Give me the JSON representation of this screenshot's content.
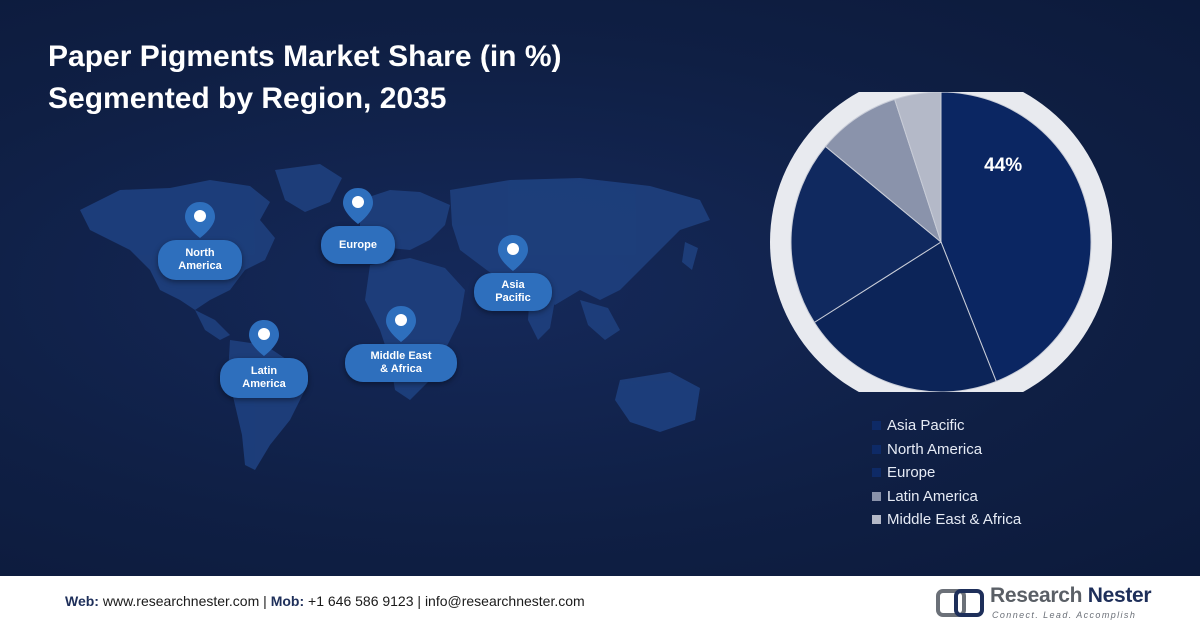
{
  "title": {
    "line1": "Paper Pigments Market Share (in %)",
    "line2": "Segmented by Region, 2035"
  },
  "map_regions": [
    {
      "label": "North\nAmerica"
    },
    {
      "label": "Europe"
    },
    {
      "label": "Asia\nPacific"
    },
    {
      "label": "Latin\nAmerica"
    },
    {
      "label": "Middle East\n& Africa"
    }
  ],
  "chart_data": {
    "type": "pie",
    "title": "Paper Pigments Market Share (in %) Segmented by Region, 2035",
    "categories": [
      "Asia Pacific",
      "North America",
      "Europe",
      "Latin America",
      "Middle East & Africa"
    ],
    "values": [
      44,
      22,
      20,
      9,
      5
    ],
    "data_labels": [
      "44%",
      "",
      "",
      "",
      ""
    ],
    "colors": [
      "#0b2662",
      "#0c2458",
      "#10295f",
      "#8a93ab",
      "#b4b9c8"
    ],
    "legend_position": "bottom-right"
  },
  "footer": {
    "web_label": "Web:",
    "web_value": "www.researchnester.com",
    "mob_label": "Mob:",
    "mob_value": "+1 646 586 9123",
    "email": "info@researchnester.com",
    "separator": "|",
    "logo_name_1": "Research",
    "logo_name_2": "Nester",
    "logo_tagline": "Connect. Lead. Accomplish"
  }
}
